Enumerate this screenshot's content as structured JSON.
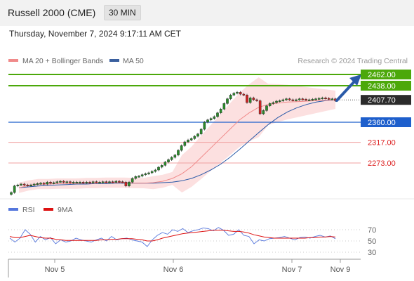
{
  "header": {
    "title": "Russell 2000 (CME)",
    "timeframe": "30 MIN",
    "timestamp": "Thursday, November 7, 2024 9:17:11 AM CET"
  },
  "legend": {
    "items": [
      {
        "label": "MA 20 + Bollinger Bands",
        "color": "#f08a8a"
      },
      {
        "label": "MA 50",
        "color": "#3a5f9e"
      }
    ],
    "credit": "Research © 2024 Trading Central"
  },
  "colors": {
    "resistance": "#4ca80a",
    "support_line": "#1e5fcc",
    "minor_level": "#f0a0a0",
    "candle_up": "#2a8a2a",
    "candle_down": "#cc2222",
    "arrow": "#2a5aa8",
    "rsi": "#5577dd",
    "rsi_ma": "#dd1111"
  },
  "chart_data": [
    {
      "type": "line",
      "title": "",
      "x_ticks": [
        "Nov 5",
        "Nov 6",
        "Nov 7",
        "Nov 9"
      ],
      "ylim": [
        2200,
        2475
      ],
      "price_levels": [
        {
          "value": 2462.0,
          "label": "2462.00",
          "kind": "resistance"
        },
        {
          "value": 2438.0,
          "label": "2438.00",
          "kind": "resistance"
        },
        {
          "value": 2407.7,
          "label": "2407.70",
          "kind": "last"
        },
        {
          "value": 2360.0,
          "label": "2360.00",
          "kind": "support"
        },
        {
          "value": 2317.0,
          "label": "2317.00",
          "kind": "minor"
        },
        {
          "value": 2273.0,
          "label": "2273.00",
          "kind": "minor"
        }
      ],
      "series": [
        {
          "name": "MA 20 + Bollinger Bands",
          "values": [
            2220,
            2225,
            2228,
            2228,
            2229,
            2229,
            2229,
            2230,
            2230,
            2231,
            2231,
            2231,
            2230,
            2230,
            2231,
            2234,
            2240,
            2250,
            2265,
            2285,
            2305,
            2325,
            2345,
            2365,
            2380,
            2392,
            2398,
            2401,
            2403,
            2404,
            2405,
            2406,
            2407,
            2408
          ]
        },
        {
          "name": "MA 50",
          "values": [
            2220,
            2222,
            2224,
            2225,
            2226,
            2227,
            2228,
            2228,
            2229,
            2229,
            2230,
            2230,
            2230,
            2230,
            2230,
            2231,
            2232,
            2235,
            2240,
            2248,
            2258,
            2270,
            2285,
            2302,
            2320,
            2338,
            2355,
            2370,
            2382,
            2391,
            2398,
            2403,
            2406,
            2408
          ]
        }
      ],
      "candles": [
        2210,
        2224,
        2226,
        2228,
        2226,
        2225,
        2226,
        2228,
        2229,
        2230,
        2228,
        2232,
        2230,
        2231,
        2233,
        2234,
        2232,
        2233,
        2231,
        2232,
        2232,
        2232,
        2231,
        2232,
        2231,
        2233,
        2232,
        2232,
        2233,
        2232,
        2233,
        2232,
        2234,
        2233,
        2232,
        2224,
        2232,
        2240,
        2244,
        2245,
        2248,
        2250,
        2252,
        2255,
        2258,
        2264,
        2268,
        2275,
        2280,
        2285,
        2290,
        2300,
        2310,
        2318,
        2322,
        2325,
        2330,
        2335,
        2345,
        2360,
        2365,
        2368,
        2372,
        2380,
        2388,
        2400,
        2410,
        2418,
        2422,
        2424,
        2420,
        2418,
        2402,
        2412,
        2408,
        2406,
        2378,
        2385,
        2395,
        2400,
        2402,
        2405,
        2406,
        2408,
        2410,
        2408,
        2407,
        2408,
        2410,
        2409,
        2408,
        2408,
        2409,
        2410,
        2411,
        2412,
        2411,
        2410,
        2410,
        2406
      ]
    },
    {
      "type": "line",
      "title": "",
      "legend": [
        "RSI",
        "9MA"
      ],
      "ylim": [
        20,
        80
      ],
      "y_ticks": [
        70,
        50,
        30
      ],
      "series": [
        {
          "name": "RSI",
          "values": [
            55,
            48,
            55,
            70,
            62,
            48,
            58,
            52,
            56,
            45,
            52,
            48,
            50,
            55,
            52,
            50,
            48,
            52,
            55,
            50,
            58,
            52,
            54,
            55,
            52,
            50,
            48,
            40,
            52,
            60,
            65,
            62,
            70,
            67,
            72,
            65,
            68,
            70,
            73,
            72,
            68,
            74,
            69,
            60,
            62,
            70,
            60,
            58,
            45,
            52,
            50,
            54,
            55,
            56,
            58,
            55,
            52,
            56,
            57,
            55,
            58,
            60,
            57,
            59,
            54
          ]
        },
        {
          "name": "9MA",
          "values": [
            58,
            56,
            56,
            58,
            60,
            58,
            56,
            55,
            55,
            53,
            52,
            51,
            51,
            51,
            51,
            51,
            51,
            51,
            52,
            52,
            53,
            53,
            54,
            54,
            54,
            53,
            52,
            50,
            50,
            52,
            55,
            57,
            59,
            61,
            63,
            64,
            65,
            66,
            67,
            68,
            69,
            69,
            69,
            68,
            67,
            67,
            66,
            64,
            61,
            59,
            57,
            56,
            55,
            55,
            55,
            55,
            55,
            55,
            55,
            56,
            56,
            57,
            57,
            58,
            57
          ]
        }
      ]
    }
  ]
}
